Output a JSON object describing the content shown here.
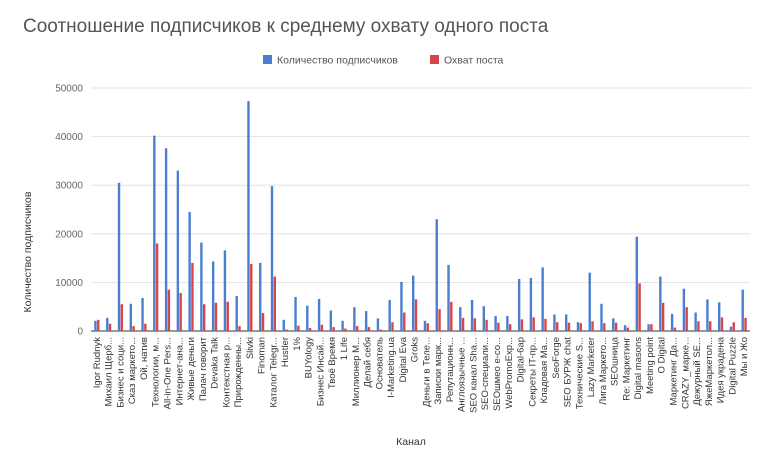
{
  "chart_data": {
    "type": "bar",
    "title": "Соотношение подписчиков к среднему охвату одного поста",
    "xlabel": "Канал",
    "ylabel": "Количество подписчиков",
    "ylim": [
      0,
      50000
    ],
    "yticks": [
      0,
      10000,
      20000,
      30000,
      40000,
      50000
    ],
    "grid": true,
    "legend_position": "top",
    "colors": {
      "subscribers": "#4a7fcf",
      "reach": "#d3464b"
    },
    "categories": [
      "Igor Rudnyk",
      "Михаил Щерб...",
      "Бизнес и соци...",
      "Сказ маркето...",
      "Ой, натив",
      "Технологии, м...",
      "All-in-One Pers...",
      "Интернет-ана...",
      "Живые деньги",
      "Палач говорит",
      "Devaka Talk",
      "Контекстная р...",
      "Прирожденны...",
      "Slivki",
      "Finoman",
      "Каталог Telegr...",
      "Hustler",
      "1%",
      "BUYology",
      "Бизнес Инсай...",
      "Твоё Время",
      "1 Life",
      "Миллионер М...",
      "Делай себя",
      "Основатель",
      "I-Marketing.ua",
      "Digital Eva",
      "Groks",
      "Деньги в Теле...",
      "Записки марк...",
      "Репутационн...",
      "Англоязычные ...",
      "SEO канал Sha...",
      "SEO-специали...",
      "SEOшмео е-со...",
      "WebPromoExp...",
      "Digital-6ap",
      "Секреты IT-пр...",
      "Кладовая Ма...",
      "SeoForge",
      "SEO БУРЖ chat",
      "Технические S...",
      "Lazy Marketer",
      "Лига Маркето...",
      "SEOшница",
      "Re: Маркетинг",
      "Digital masons",
      "Meeting point",
      "O Digital",
      "Маркетинг Да...",
      "CRAZY_марке...",
      "Дежурный SE...",
      "ЯжеМаркетол...",
      "Идея украдена",
      "Digital Puzzle",
      "Мы и Жо"
    ],
    "series": [
      {
        "name": "Количество подписчиков",
        "values": [
          2100,
          2700,
          30500,
          5600,
          6800,
          40200,
          37600,
          33000,
          24500,
          18200,
          14300,
          16600,
          7200,
          47300,
          14000,
          29800,
          2300,
          7000,
          5200,
          6600,
          4200,
          2100,
          4900,
          4100,
          2600,
          6400,
          10100,
          11400,
          2100,
          23000,
          13600,
          4900,
          6400,
          5100,
          3100,
          3100,
          10700,
          10900,
          13100,
          3400,
          3400,
          1800,
          12000,
          5600,
          2600,
          1200,
          19400,
          1400,
          11200,
          3500,
          8700,
          3800,
          6500,
          5900,
          900,
          8500
        ]
      },
      {
        "name": "Охват поста",
        "values": [
          2300,
          1500,
          5500,
          1000,
          1500,
          18000,
          8500,
          7800,
          14000,
          5500,
          5800,
          6000,
          1000,
          13800,
          3700,
          11200,
          300,
          1100,
          600,
          1300,
          800,
          500,
          1000,
          800,
          300,
          1800,
          3800,
          6500,
          1600,
          4500,
          6000,
          2700,
          2600,
          2300,
          1700,
          1400,
          2400,
          2800,
          2500,
          1800,
          1700,
          1600,
          2000,
          1600,
          1700,
          700,
          9800,
          1400,
          5800,
          700,
          4900,
          2000,
          2000,
          2800,
          1800,
          2700
        ]
      }
    ]
  }
}
